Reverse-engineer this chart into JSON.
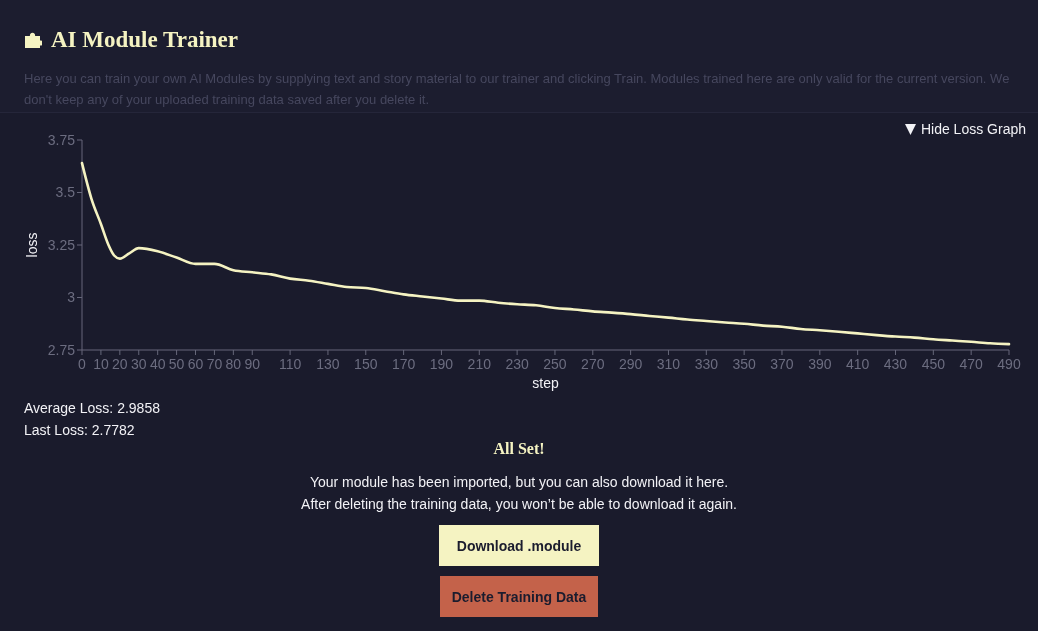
{
  "chart_data": {
    "type": "line",
    "title": "AI Module Trainer",
    "xlabel": "step",
    "ylabel": "loss",
    "x": [
      0,
      5,
      10,
      14,
      17,
      20,
      25,
      30,
      40,
      50,
      60,
      70,
      80,
      90,
      100,
      110,
      120,
      130,
      140,
      150,
      160,
      170,
      180,
      190,
      200,
      210,
      220,
      230,
      240,
      250,
      260,
      270,
      280,
      290,
      300,
      310,
      320,
      330,
      340,
      350,
      360,
      370,
      380,
      390,
      400,
      410,
      420,
      430,
      440,
      450,
      460,
      470,
      480,
      490
    ],
    "series": [
      {
        "color": "#f5f3c2",
        "values": [
          3.64,
          3.47,
          3.35,
          3.25,
          3.2,
          3.185,
          3.21,
          3.235,
          3.22,
          3.19,
          3.16,
          3.16,
          3.13,
          3.12,
          3.11,
          3.09,
          3.08,
          3.065,
          3.05,
          3.045,
          3.03,
          3.015,
          3.005,
          2.995,
          2.985,
          2.985,
          2.975,
          2.968,
          2.963,
          2.95,
          2.943,
          2.934,
          2.928,
          2.921,
          2.912,
          2.904,
          2.895,
          2.888,
          2.881,
          2.875,
          2.866,
          2.861,
          2.85,
          2.844,
          2.837,
          2.829,
          2.821,
          2.814,
          2.809,
          2.801,
          2.795,
          2.789,
          2.782,
          2.778
        ]
      }
    ],
    "xlim": [
      0,
      490
    ],
    "ylim": [
      2.75,
      3.75
    ],
    "xticks": [
      0,
      10,
      20,
      30,
      40,
      50,
      60,
      70,
      80,
      90,
      110,
      130,
      150,
      170,
      190,
      210,
      230,
      250,
      270,
      290,
      310,
      330,
      350,
      370,
      390,
      410,
      430,
      450,
      470,
      490
    ],
    "yticks": [
      2.75,
      3,
      3.25,
      3.5,
      3.75
    ],
    "line_style": "solid",
    "annotations": [
      "Here you can train your own AI Modules by supplying text and story material to our trainer and clicking Train. Modules trained here are only valid for the current version. We don't keep any of your uploaded training data saved after you delete it.",
      "Hide Loss Graph",
      "Average Loss: 2.9858",
      "Last Loss: 2.7782",
      "All Set!",
      "Your module has been imported, but you can also download it here.",
      "After deleting the training data, you won’t be able to download it again.",
      "Download .module",
      "Delete Training Data"
    ]
  }
}
